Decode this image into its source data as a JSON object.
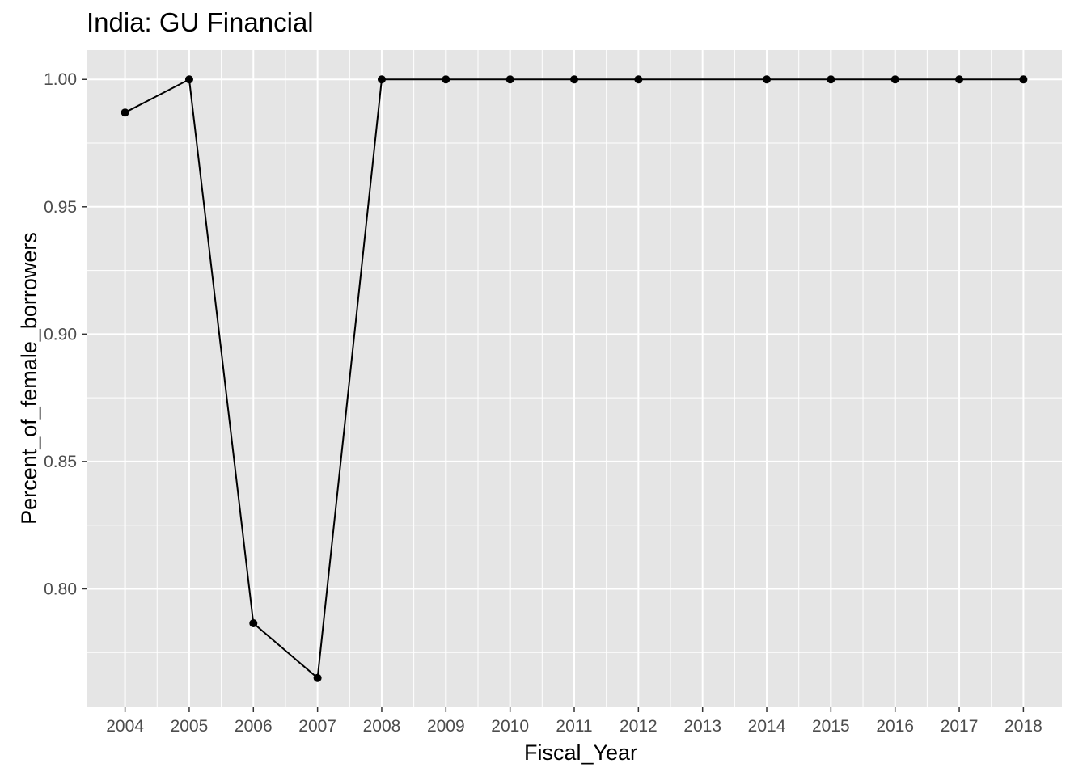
{
  "chart_data": {
    "type": "line",
    "title": "India:  GU Financial",
    "xlabel": "Fiscal_Year",
    "ylabel": "Percent_of_female_borrowers",
    "x_categories": [
      "2004",
      "2005",
      "2006",
      "2007",
      "2008",
      "2009",
      "2010",
      "2011",
      "2012",
      "2013",
      "2014",
      "2015",
      "2016",
      "2017",
      "2018"
    ],
    "points": [
      {
        "x": "2004",
        "y": 0.987
      },
      {
        "x": "2005",
        "y": 1.0
      },
      {
        "x": "2006",
        "y": 0.7865
      },
      {
        "x": "2007",
        "y": 0.765
      },
      {
        "x": "2008",
        "y": 1.0
      },
      {
        "x": "2009",
        "y": 1.0
      },
      {
        "x": "2010",
        "y": 1.0
      },
      {
        "x": "2011",
        "y": 1.0
      },
      {
        "x": "2012",
        "y": 1.0
      },
      {
        "x": "2014",
        "y": 1.0
      },
      {
        "x": "2015",
        "y": 1.0
      },
      {
        "x": "2016",
        "y": 1.0
      },
      {
        "x": "2017",
        "y": 1.0
      },
      {
        "x": "2018",
        "y": 1.0
      }
    ],
    "y_ticks": [
      0.8,
      0.85,
      0.9,
      0.95,
      1.0
    ],
    "y_tick_labels": [
      "0.80",
      "0.85",
      "0.90",
      "0.95",
      "1.00"
    ],
    "ylim": [
      0.7535,
      1.0115
    ],
    "grid": true,
    "legend": "none",
    "colors": {
      "panel": "#e5e5e5",
      "grid": "#ffffff",
      "line": "#000000",
      "point": "#000000",
      "tick_text": "#4d4d4d"
    }
  }
}
